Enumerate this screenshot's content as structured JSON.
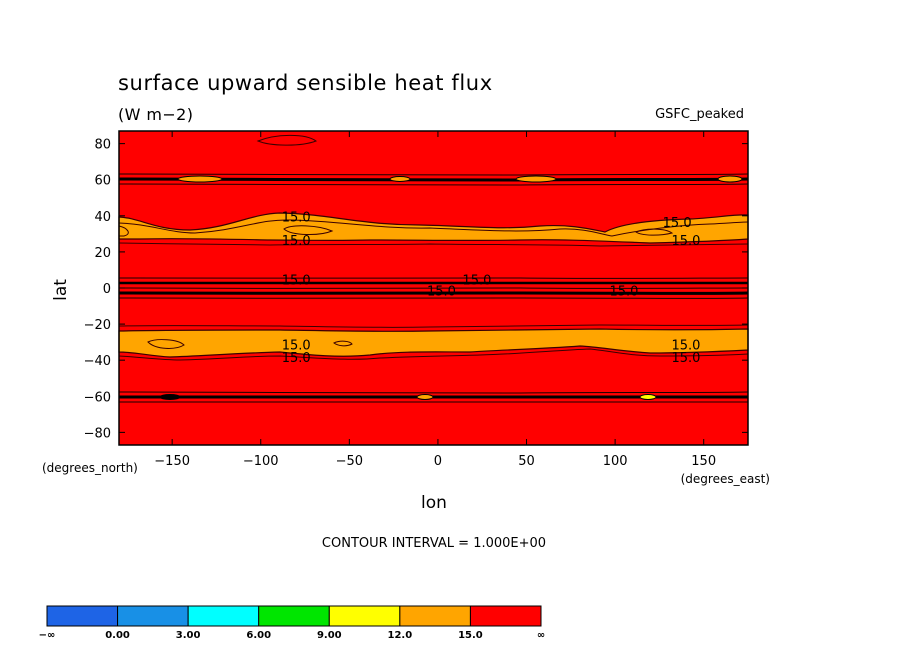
{
  "header": {
    "title": "surface upward sensible heat flux",
    "units": "(W m−2)",
    "experiment": "GSFC_peaked"
  },
  "axes": {
    "ylabel": "lat",
    "xlabel": "lon",
    "y_units_note": "(degrees_north)",
    "x_units_note": "(degrees_east)"
  },
  "footer": {
    "contour_interval": "CONTOUR INTERVAL = 1.000E+00"
  },
  "colors": {
    "band_0_3": "#0e76ff",
    "band_3_6": "#00e6ff",
    "band_6_9": "#00e600",
    "band_9_12": "#ffff00",
    "band_12_15": "#ffa500",
    "band_15_inf": "#ff0000",
    "band_0": "#1890e6"
  },
  "chart_data": {
    "type": "heatmap",
    "title": "surface upward sensible heat flux",
    "units": "(W m−2)",
    "xlabel": "lon",
    "ylabel": "lat",
    "xlim": [
      -180,
      175
    ],
    "ylim": [
      -87,
      87
    ],
    "x_ticks": [
      -150,
      -100,
      -50,
      0,
      50,
      100,
      150
    ],
    "x_tick_labels": [
      "−150",
      "−100",
      "−50",
      "0",
      "50",
      "100",
      "150"
    ],
    "y_ticks": [
      -80,
      -60,
      -40,
      -20,
      0,
      20,
      40,
      60,
      80
    ],
    "y_tick_labels": [
      "−80",
      "−60",
      "−40",
      "−20",
      "0",
      "20",
      "40",
      "60",
      "80"
    ],
    "contour_interval": 1.0,
    "colorbar": {
      "levels": [
        "−∞",
        "0.00",
        "3.00",
        "6.00",
        "9.00",
        "12.0",
        "15.0",
        "∞"
      ],
      "colors": [
        "#1e64e6",
        "#1890e6",
        "#00ffff",
        "#00e600",
        "#ffff00",
        "#ffa500",
        "#ff0000"
      ]
    },
    "background_level": "15.0 to ∞",
    "bands": [
      {
        "range": "12.0 to 15.0",
        "lat_from": 25,
        "lat_to": 37
      },
      {
        "range": "12.0 to 15.0",
        "lat_from": -37,
        "lat_to": -25
      }
    ],
    "contour_labels": [
      {
        "text": "15.0",
        "lon": -80,
        "lat": 38
      },
      {
        "text": "15.0",
        "lon": -80,
        "lat": 25
      },
      {
        "text": "15.0",
        "lon": 135,
        "lat": 35
      },
      {
        "text": "15.0",
        "lon": 140,
        "lat": 25
      },
      {
        "text": "15.0",
        "lon": -80,
        "lat": 3
      },
      {
        "text": "15.0",
        "lon": 22,
        "lat": 3
      },
      {
        "text": "15.0",
        "lon": 2,
        "lat": -3
      },
      {
        "text": "15.0",
        "lon": 105,
        "lat": -3
      },
      {
        "text": "15.0",
        "lon": -80,
        "lat": -33
      },
      {
        "text": "15.0",
        "lon": -80,
        "lat": -40
      },
      {
        "text": "15.0",
        "lon": 140,
        "lat": -33
      },
      {
        "text": "15.0",
        "lon": 140,
        "lat": -40
      }
    ]
  }
}
